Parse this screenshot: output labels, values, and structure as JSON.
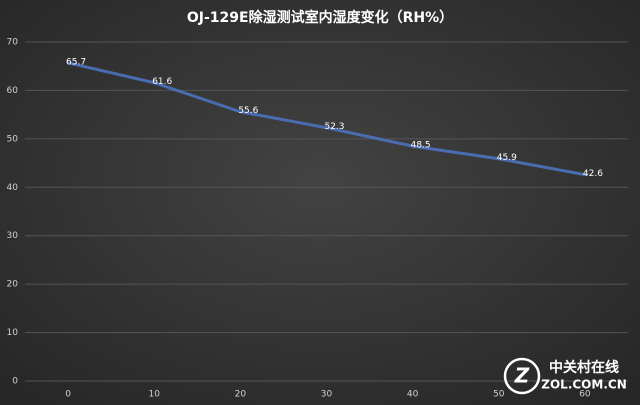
{
  "chart_data": {
    "type": "line",
    "title": "OJ-129E除湿测试室内湿度变化（RH%）",
    "x": [
      0,
      10,
      20,
      30,
      40,
      50,
      60
    ],
    "series": [
      {
        "color": "#4a6cb0",
        "values": [
          65.7,
          61.6,
          55.6,
          52.3,
          48.5,
          45.9,
          42.6
        ]
      }
    ],
    "xlim": [
      -5,
      65
    ],
    "xticks": [
      0,
      10,
      20,
      30,
      40,
      50,
      60
    ],
    "ylim": [
      0,
      70
    ],
    "yticks": [
      0,
      10,
      20,
      30,
      40,
      50,
      60,
      70
    ],
    "grid": true
  },
  "watermark": {
    "name": "中关村在线",
    "url": "ZOL.COM.CN"
  }
}
